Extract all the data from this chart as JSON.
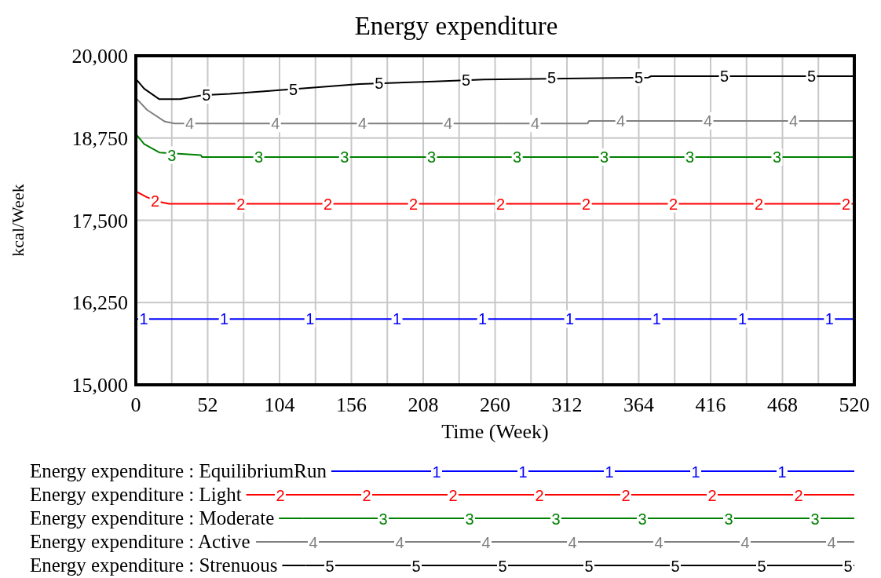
{
  "chart_data": {
    "type": "line",
    "title": "Energy expenditure",
    "xlabel": "Time (Week)",
    "ylabel": "kcal/Week",
    "xlim": [
      0,
      520
    ],
    "ylim": [
      15000,
      20000
    ],
    "xticks": [
      0,
      {
        "value": 26,
        "label": null
      },
      52,
      {
        "value": 78,
        "label": null
      },
      104,
      {
        "value": 130,
        "label": null
      },
      156,
      {
        "value": 182,
        "label": null
      },
      208,
      {
        "value": 234,
        "label": null
      },
      260,
      {
        "value": 286,
        "label": null
      },
      312,
      {
        "value": 338,
        "label": null
      },
      364,
      {
        "value": 390,
        "label": null
      },
      416,
      {
        "value": 442,
        "label": null
      },
      468,
      {
        "value": 494,
        "label": null
      },
      520
    ],
    "yticks": [
      {
        "value": 15000,
        "label": "15,000"
      },
      {
        "value": 16250,
        "label": "16,250"
      },
      {
        "value": 17500,
        "label": "17,500"
      },
      {
        "value": 18750,
        "label": "18,750"
      },
      {
        "value": 20000,
        "label": "20,000"
      }
    ],
    "grid": true,
    "legend": "bottom",
    "marker": "none",
    "line_style": "solid",
    "series": [
      {
        "name": "Energy expenditure : EquilibriumRun",
        "color": "#0000ff",
        "x": [
          0,
          520
        ],
        "values": [
          16000,
          16000
        ]
      },
      {
        "name": "Energy expenditure : Light",
        "color": "#ff0000",
        "x": [
          0,
          8,
          17,
          24,
          520
        ],
        "values": [
          17940,
          17850,
          17780,
          17750,
          17750
        ]
      },
      {
        "name": "Energy expenditure : Moderate",
        "color": "#008000",
        "x": [
          0,
          6,
          17,
          47,
          48,
          520
        ],
        "values": [
          18810,
          18660,
          18530,
          18490,
          18460,
          18460
        ]
      },
      {
        "name": "Energy expenditure : Active",
        "color": "#808080",
        "x": [
          0,
          8,
          21,
          28,
          327,
          328,
          520
        ],
        "values": [
          19360,
          19180,
          19000,
          18970,
          18970,
          19010,
          19010
        ]
      },
      {
        "name": "Energy expenditure : Strenuous",
        "color": "#000000",
        "x": [
          0,
          6,
          17,
          32,
          48,
          68,
          93,
          106,
          125,
          162,
          216,
          252,
          371,
          373,
          520
        ],
        "values": [
          19650,
          19500,
          19340,
          19340,
          19400,
          19420,
          19460,
          19480,
          19510,
          19570,
          19610,
          19640,
          19670,
          19690,
          19690
        ]
      }
    ],
    "annotations": [
      {
        "text": "1",
        "x": 0,
        "y": 16000
      },
      {
        "text": "1",
        "x": 64,
        "y": 16000
      },
      {
        "text": "1",
        "x": 126,
        "y": 16000
      },
      {
        "text": "1",
        "x": 189,
        "y": 16000
      },
      {
        "text": "1",
        "x": 251,
        "y": 16000
      },
      {
        "text": "1",
        "x": 314,
        "y": 16000
      },
      {
        "text": "1",
        "x": 377,
        "y": 16000
      },
      {
        "text": "1",
        "x": 439,
        "y": 16000
      },
      {
        "text": "1",
        "x": 502,
        "y": 16000
      },
      {
        "text": "2",
        "x": 14,
        "y": 17790
      },
      {
        "text": "2",
        "x": 76,
        "y": 17750
      },
      {
        "text": "2",
        "x": 139,
        "y": 17750
      },
      {
        "text": "2",
        "x": 201,
        "y": 17750
      },
      {
        "text": "2",
        "x": 264,
        "y": 17750
      },
      {
        "text": "2",
        "x": 326,
        "y": 17750
      },
      {
        "text": "2",
        "x": 389,
        "y": 17750
      },
      {
        "text": "2",
        "x": 451,
        "y": 17750
      },
      {
        "text": "2",
        "x": 514,
        "y": 17750
      },
      {
        "text": "3",
        "x": 26,
        "y": 18490
      },
      {
        "text": "3",
        "x": 89,
        "y": 18460
      },
      {
        "text": "3",
        "x": 151,
        "y": 18460
      },
      {
        "text": "3",
        "x": 214,
        "y": 18460
      },
      {
        "text": "3",
        "x": 276,
        "y": 18460
      },
      {
        "text": "3",
        "x": 339,
        "y": 18460
      },
      {
        "text": "3",
        "x": 401,
        "y": 18460
      },
      {
        "text": "3",
        "x": 464,
        "y": 18460
      },
      {
        "text": "4",
        "x": 39,
        "y": 18970
      },
      {
        "text": "4",
        "x": 101,
        "y": 18970
      },
      {
        "text": "4",
        "x": 164,
        "y": 18970
      },
      {
        "text": "4",
        "x": 226,
        "y": 18970
      },
      {
        "text": "4",
        "x": 289,
        "y": 18970
      },
      {
        "text": "4",
        "x": 351,
        "y": 19010
      },
      {
        "text": "4",
        "x": 414,
        "y": 19010
      },
      {
        "text": "4",
        "x": 476,
        "y": 19010
      },
      {
        "text": "5",
        "x": 51,
        "y": 19400
      },
      {
        "text": "5",
        "x": 114,
        "y": 19490
      },
      {
        "text": "5",
        "x": 176,
        "y": 19580
      },
      {
        "text": "5",
        "x": 239,
        "y": 19630
      },
      {
        "text": "5",
        "x": 301,
        "y": 19660
      },
      {
        "text": "5",
        "x": 364,
        "y": 19670
      },
      {
        "text": "5",
        "x": 426,
        "y": 19690
      },
      {
        "text": "5",
        "x": 489,
        "y": 19690
      },
      "1",
      "1",
      "1",
      "1",
      "1",
      "2",
      "2",
      "2",
      "2",
      "2",
      "2",
      "2",
      "3",
      "3",
      "3",
      "3",
      "3",
      "3",
      "4",
      "4",
      "4",
      "4",
      "4",
      "4",
      "4",
      "5",
      "5",
      "5",
      "5",
      "5",
      "5",
      "5"
    ]
  }
}
